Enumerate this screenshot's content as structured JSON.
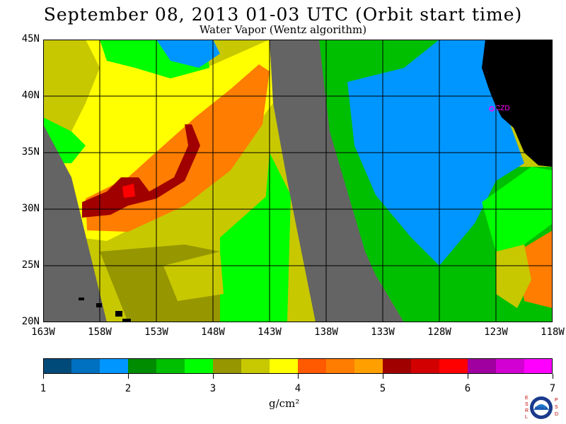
{
  "header": {
    "title": "September 08, 2013  01-03 UTC  (Orbit start time)",
    "subtitle": "Water Vapor (Wentz algorithm)"
  },
  "map": {
    "lat_labels": [
      "45N",
      "40N",
      "35N",
      "30N",
      "25N",
      "20N"
    ],
    "lon_labels": [
      "163W",
      "158W",
      "153W",
      "148W",
      "143W",
      "138W",
      "133W",
      "128W",
      "123W",
      "118W"
    ],
    "station_label": "CZD",
    "colors": {
      "no_data": "#646464",
      "land": "#000000",
      "station": "#ff00ff"
    }
  },
  "colorbar": {
    "ticks": [
      "1",
      "2",
      "3",
      "4",
      "5",
      "6",
      "7"
    ],
    "units": "g/cm²",
    "colors": [
      "#004a7a",
      "#0070c0",
      "#0096ff",
      "#008c00",
      "#00bf00",
      "#00ff00",
      "#969600",
      "#c8c800",
      "#ffff00",
      "#ff5a00",
      "#ff7d00",
      "#ffa000",
      "#a00000",
      "#d20000",
      "#ff0000",
      "#a000a0",
      "#d200d2",
      "#ff00ff"
    ]
  },
  "logo": {
    "left_letters": "ESRL",
    "right_letters": "PSD",
    "center": "NOAA"
  }
}
